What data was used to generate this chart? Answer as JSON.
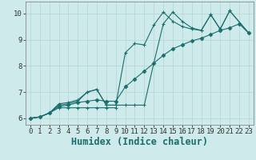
{
  "series_diamond": {
    "x": [
      0,
      1,
      2,
      3,
      4,
      5,
      6,
      7,
      8,
      9,
      10,
      11,
      12,
      13,
      14,
      15,
      16,
      17,
      18,
      19,
      20,
      21,
      22,
      23
    ],
    "y": [
      6.0,
      6.05,
      6.2,
      6.45,
      6.5,
      6.6,
      6.65,
      6.7,
      6.65,
      6.65,
      7.2,
      7.5,
      7.8,
      8.1,
      8.4,
      8.65,
      8.8,
      8.95,
      9.05,
      9.2,
      9.35,
      9.45,
      9.6,
      9.25
    ]
  },
  "series_jagged1": {
    "x": [
      0,
      1,
      2,
      3,
      4,
      5,
      6,
      7,
      8,
      9,
      10,
      11,
      12,
      13,
      14,
      15,
      16,
      17,
      18,
      19,
      20,
      21,
      23
    ],
    "y": [
      6.0,
      6.05,
      6.2,
      6.55,
      6.6,
      6.7,
      7.0,
      7.1,
      6.5,
      6.5,
      8.5,
      8.85,
      8.8,
      9.55,
      10.05,
      9.7,
      9.5,
      9.4,
      9.35,
      9.95,
      9.4,
      10.1,
      9.25
    ]
  },
  "series_jagged2": {
    "x": [
      0,
      1,
      2,
      3,
      4,
      5,
      6,
      7,
      8,
      9,
      10,
      11,
      12,
      13,
      14,
      15,
      16,
      17,
      18,
      19,
      20,
      21,
      23
    ],
    "y": [
      6.0,
      6.05,
      6.2,
      6.5,
      6.55,
      6.65,
      7.0,
      7.1,
      6.5,
      6.5,
      6.5,
      6.5,
      6.5,
      8.1,
      9.6,
      10.05,
      9.7,
      9.45,
      9.35,
      9.95,
      9.4,
      10.1,
      9.25
    ]
  },
  "series_flat": {
    "x": [
      0,
      1,
      2,
      3,
      4,
      5,
      6,
      7,
      8,
      9
    ],
    "y": [
      6.0,
      6.05,
      6.2,
      6.4,
      6.4,
      6.4,
      6.4,
      6.4,
      6.4,
      6.4
    ]
  },
  "xlabel": "Humidex (Indice chaleur)",
  "xlim": [
    -0.5,
    23.5
  ],
  "ylim": [
    5.75,
    10.45
  ],
  "xticks": [
    0,
    1,
    2,
    3,
    4,
    5,
    6,
    7,
    8,
    9,
    10,
    11,
    12,
    13,
    14,
    15,
    16,
    17,
    18,
    19,
    20,
    21,
    22,
    23
  ],
  "yticks": [
    6,
    7,
    8,
    9,
    10
  ],
  "bg_color": "#ceeaea",
  "grid_color": "#b8d8d8",
  "line_color": "#1a6e6e",
  "tick_fontsize": 6.5,
  "xlabel_fontsize": 8.5
}
